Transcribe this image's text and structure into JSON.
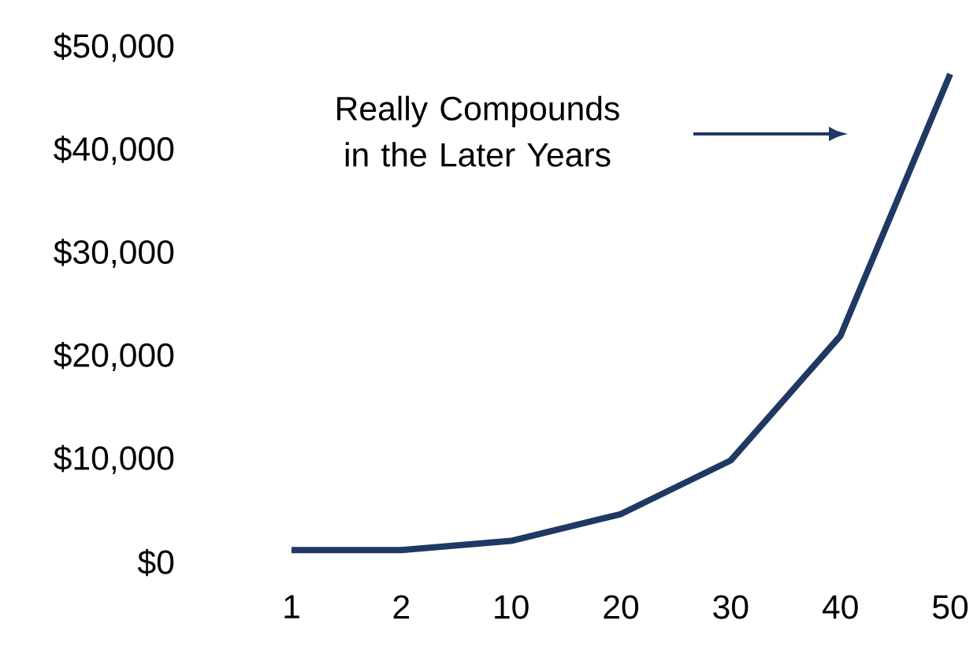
{
  "chart_data": {
    "type": "line",
    "categories": [
      "1",
      "2",
      "10",
      "20",
      "30",
      "40",
      "50"
    ],
    "values": [
      1200,
      1200,
      2100,
      4700,
      9900,
      22000,
      47400
    ],
    "color": "#1f3864",
    "ylim": [
      0,
      50000
    ],
    "yticks": [
      {
        "value": 0,
        "label": "$0"
      },
      {
        "value": 10000,
        "label": "$10,000"
      },
      {
        "value": 20000,
        "label": "$20,000"
      },
      {
        "value": 30000,
        "label": "$30,000"
      },
      {
        "value": 40000,
        "label": "$40,000"
      },
      {
        "value": 50000,
        "label": "$50,000"
      }
    ],
    "annotations": [
      "Really Compounds in the Later Years"
    ]
  }
}
